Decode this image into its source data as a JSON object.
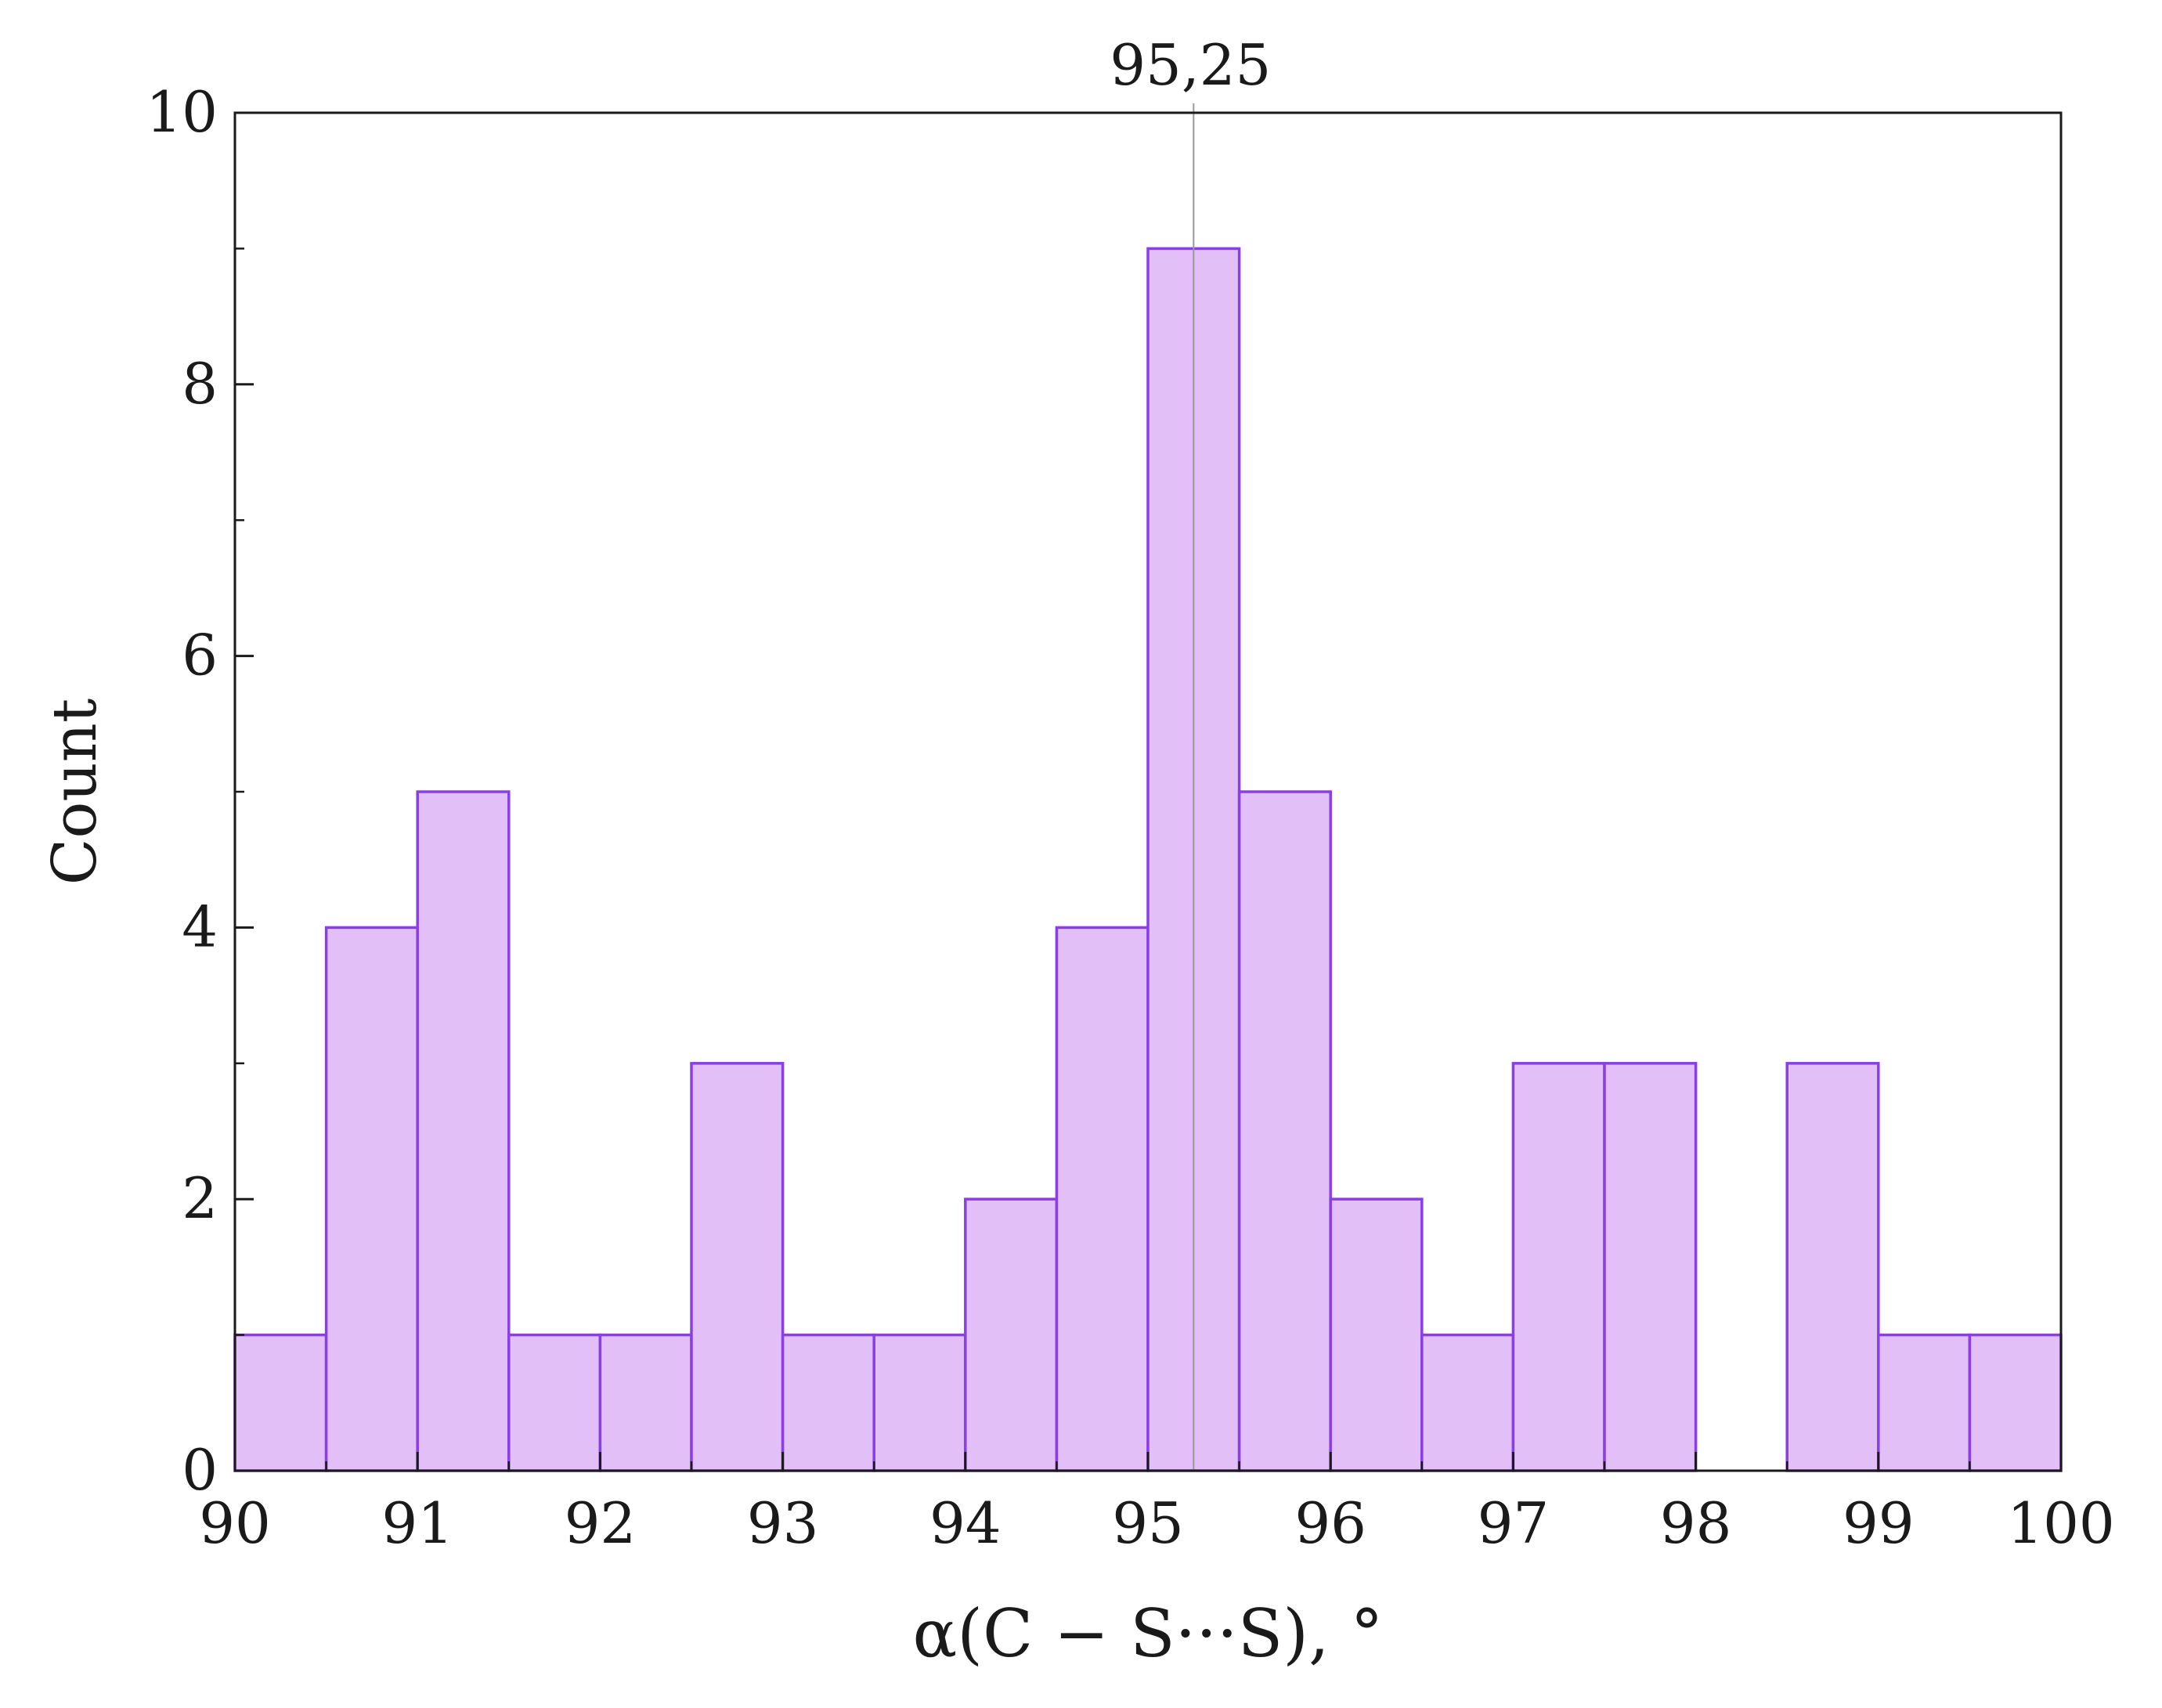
{
  "chart_data": {
    "type": "bar",
    "bin_edges": [
      90,
      90.5,
      91,
      91.5,
      92,
      92.5,
      93,
      93.5,
      94,
      94.5,
      95,
      95.5,
      96,
      96.5,
      97,
      97.5,
      98,
      98.5,
      99,
      99.5,
      100
    ],
    "values": [
      1,
      4,
      5,
      1,
      1,
      3,
      1,
      1,
      2,
      4,
      9,
      5,
      2,
      1,
      3,
      3,
      0,
      3,
      1,
      1
    ],
    "xlabel": "α(C − S···S), °",
    "ylabel": "Count",
    "xlim": [
      90,
      100
    ],
    "ylim": [
      0,
      10
    ],
    "x_ticks": [
      "90",
      "91",
      "92",
      "93",
      "94",
      "95",
      "96",
      "97",
      "98",
      "99",
      "100"
    ],
    "y_ticks": [
      "0",
      "2",
      "4",
      "6",
      "8",
      "10"
    ],
    "grid": false,
    "marker_line": {
      "x": 95.25,
      "label": "95,25"
    },
    "colors": {
      "bar_fill": "#e2bff7",
      "bar_edge": "#8a3ee8",
      "axis": "#1a1a1a",
      "marker_line": "#999999"
    }
  }
}
